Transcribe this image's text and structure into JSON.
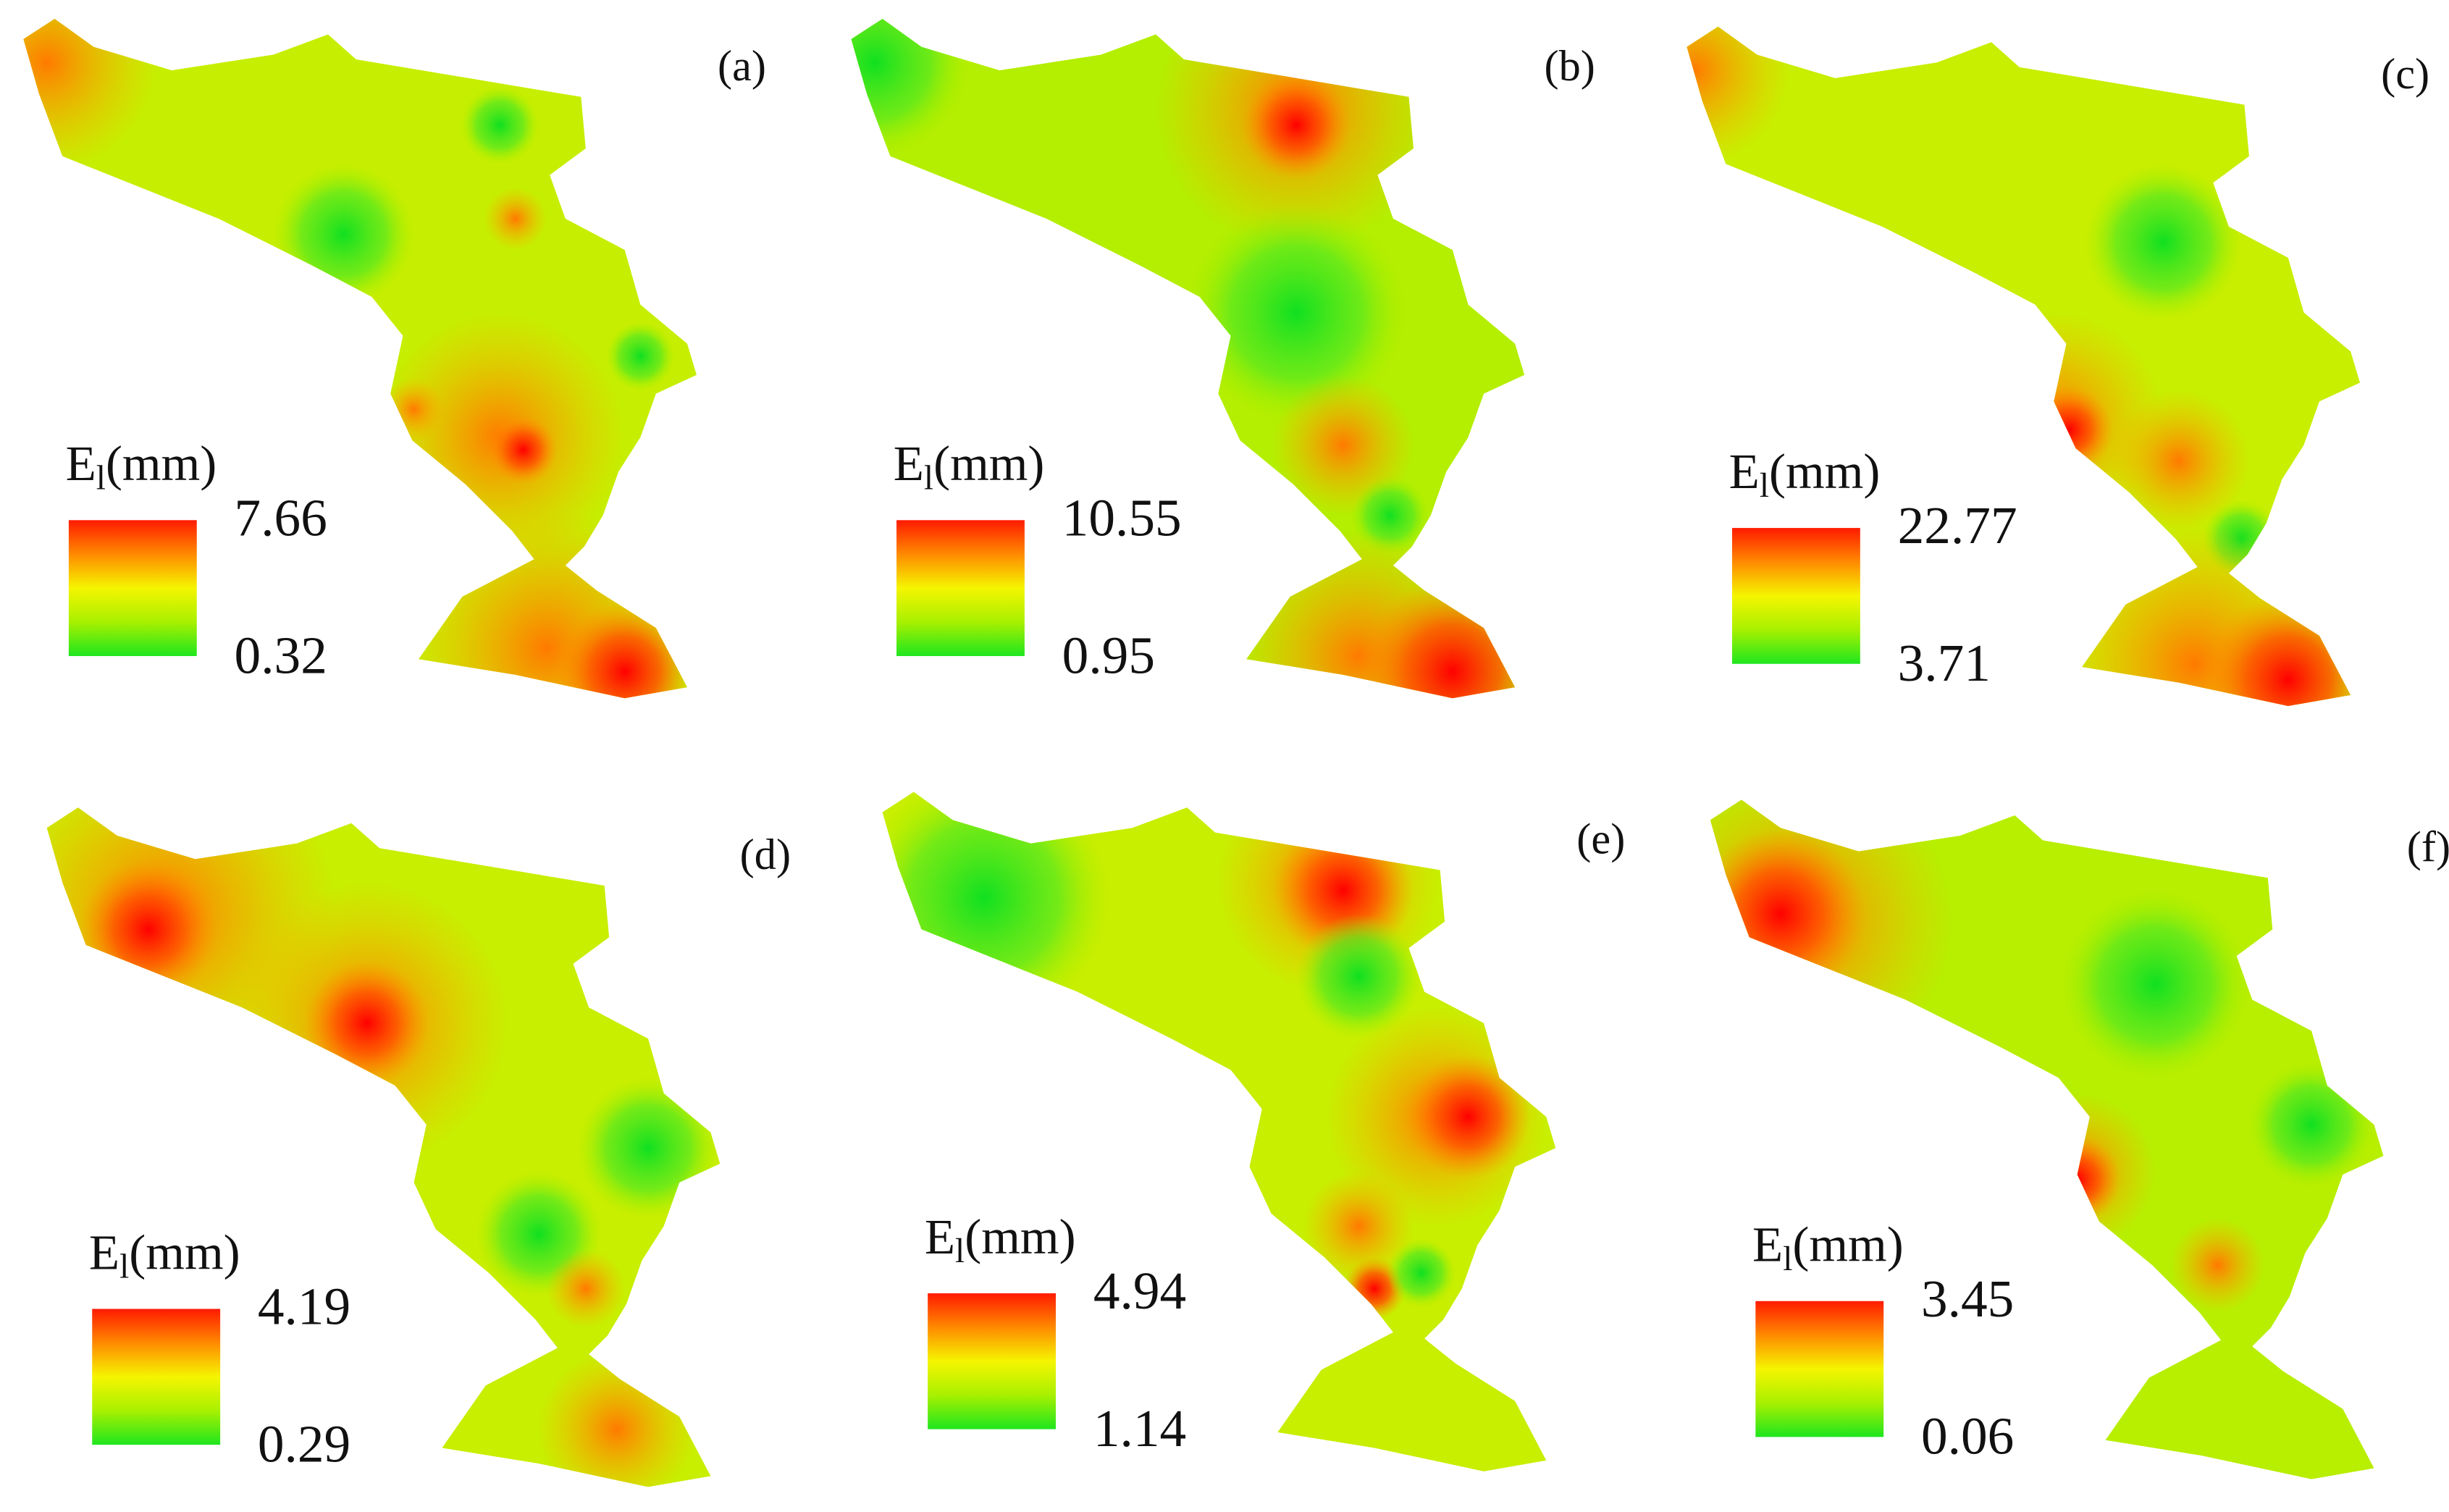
{
  "panels": [
    {
      "label": "(a)",
      "legend": {
        "symbol": "E",
        "subscript": "l",
        "unit": "(mm)",
        "max": 7.66,
        "min": 0.32
      }
    },
    {
      "label": "(b)",
      "legend": {
        "symbol": "E",
        "subscript": "l",
        "unit": "(mm)",
        "max": 10.55,
        "min": 0.95
      }
    },
    {
      "label": "(c)",
      "legend": {
        "symbol": "E",
        "subscript": "l",
        "unit": "(mm)",
        "max": 22.77,
        "min": 3.71
      }
    },
    {
      "label": "(d)",
      "legend": {
        "symbol": "E",
        "subscript": "l",
        "unit": "(mm)",
        "max": 4.19,
        "min": 0.29
      }
    },
    {
      "label": "(e)",
      "legend": {
        "symbol": "E",
        "subscript": "l",
        "unit": "(mm)",
        "max": 4.94,
        "min": 1.14
      }
    },
    {
      "label": "(f)",
      "legend": {
        "symbol": "E",
        "subscript": "l",
        "unit": "(mm)",
        "max": 3.45,
        "min": 0.06
      }
    }
  ]
}
